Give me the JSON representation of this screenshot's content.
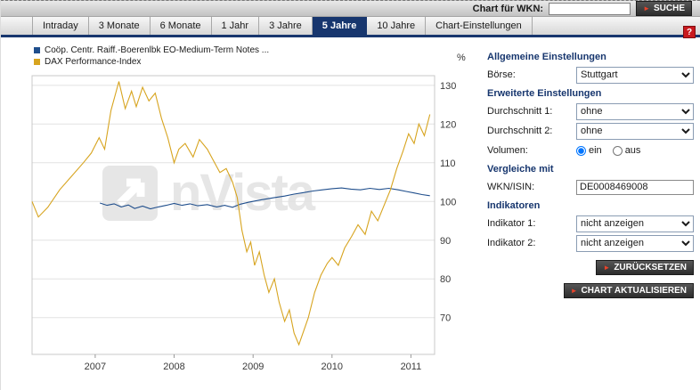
{
  "topbar": {
    "wkn_label": "Chart für WKN:",
    "wkn_value": "",
    "search_button": "SUCHE"
  },
  "icons": {
    "red_arrow": "►",
    "help": "?"
  },
  "tabs": {
    "items": [
      {
        "label": "Intraday",
        "active": false
      },
      {
        "label": "3 Monate",
        "active": false
      },
      {
        "label": "6 Monate",
        "active": false
      },
      {
        "label": "1 Jahr",
        "active": false
      },
      {
        "label": "3 Jahre",
        "active": false
      },
      {
        "label": "5 Jahre",
        "active": true
      },
      {
        "label": "10 Jahre",
        "active": false
      },
      {
        "label": "Chart-Einstellungen",
        "active": false
      }
    ]
  },
  "legend": [
    {
      "label": "Coöp. Centr. Raiff.-Boerenlbk EO-Medium-Term Notes ...",
      "color": "#1f4e8c"
    },
    {
      "label": "DAX Performance-Index",
      "color": "#d7a41f"
    }
  ],
  "watermark": {
    "text": "nVista"
  },
  "settings": {
    "general_heading": "Allgemeine Einstellungen",
    "boerse_label": "Börse:",
    "boerse_value": "Stuttgart",
    "extended_heading": "Erweiterte Einstellungen",
    "avg1_label": "Durchschnitt 1:",
    "avg1_value": "ohne",
    "avg2_label": "Durchschnitt 2:",
    "avg2_value": "ohne",
    "volume_label": "Volumen:",
    "volume_on": "ein",
    "volume_off": "aus",
    "volume_selected": "ein",
    "compare_heading": "Vergleiche mit",
    "wkn_label": "WKN/ISIN:",
    "wkn_value": "DE0008469008",
    "indicators_heading": "Indikatoren",
    "ind1_label": "Indikator 1:",
    "ind1_value": "nicht anzeigen",
    "ind2_label": "Indikator 2:",
    "ind2_value": "nicht anzeigen",
    "reset_button": "ZURÜCKSETZEN",
    "update_button": "CHART AKTUALISIEREN"
  },
  "chart_data": {
    "type": "line",
    "title": "",
    "xlabel": "",
    "ylabel": "%",
    "y_ticks": [
      70,
      80,
      90,
      100,
      110,
      120,
      130
    ],
    "x_ticks": [
      2007,
      2008,
      2009,
      2010,
      2011
    ],
    "x_range": [
      2006.2,
      2011.3
    ],
    "y_range": [
      60.5,
      132.5
    ],
    "grid": "horizontal",
    "legend_position": "top-left",
    "series": [
      {
        "name": "Coöp. Centr. Raiff.-Boerenlbk EO-Medium-Term Notes",
        "color": "#1f4e8c",
        "x": [
          2007.06,
          2007.15,
          2007.24,
          2007.33,
          2007.42,
          2007.5,
          2007.6,
          2007.7,
          2007.8,
          2007.9,
          2008.0,
          2008.1,
          2008.2,
          2008.3,
          2008.42,
          2008.54,
          2008.64,
          2008.74,
          2008.84,
          2008.94,
          2009.04,
          2009.15,
          2009.27,
          2009.4,
          2009.52,
          2009.64,
          2009.76,
          2009.88,
          2010.0,
          2010.12,
          2010.24,
          2010.36,
          2010.48,
          2010.6,
          2010.72,
          2010.84,
          2010.94,
          2011.04,
          2011.14,
          2011.24
        ],
        "y": [
          99.6,
          99.0,
          99.4,
          98.6,
          99.1,
          98.2,
          98.8,
          98.1,
          98.6,
          99.0,
          99.5,
          99.0,
          99.4,
          98.9,
          99.2,
          98.6,
          99.0,
          98.5,
          99.3,
          99.8,
          100.2,
          100.6,
          101.0,
          101.4,
          101.9,
          102.3,
          102.7,
          103.0,
          103.3,
          103.5,
          103.2,
          103.0,
          103.4,
          103.1,
          103.4,
          103.0,
          102.6,
          102.2,
          101.8,
          101.5
        ]
      },
      {
        "name": "DAX Performance-Index",
        "color": "#d7a41f",
        "x": [
          2006.2,
          2006.28,
          2006.4,
          2006.55,
          2006.7,
          2006.85,
          2006.95,
          2007.05,
          2007.12,
          2007.2,
          2007.3,
          2007.38,
          2007.46,
          2007.52,
          2007.6,
          2007.68,
          2007.76,
          2007.84,
          2007.92,
          2008.0,
          2008.06,
          2008.14,
          2008.24,
          2008.32,
          2008.42,
          2008.5,
          2008.58,
          2008.66,
          2008.74,
          2008.8,
          2008.86,
          2008.92,
          2008.97,
          2009.02,
          2009.08,
          2009.14,
          2009.2,
          2009.27,
          2009.33,
          2009.4,
          2009.46,
          2009.52,
          2009.58,
          2009.64,
          2009.7,
          2009.78,
          2009.86,
          2009.94,
          2010.0,
          2010.08,
          2010.16,
          2010.25,
          2010.33,
          2010.42,
          2010.5,
          2010.58,
          2010.66,
          2010.74,
          2010.82,
          2010.9,
          2010.97,
          2011.04,
          2011.1,
          2011.17,
          2011.24
        ],
        "y": [
          100,
          96,
          98.5,
          103,
          106.5,
          110,
          112.5,
          116.5,
          113.5,
          123.5,
          131,
          124,
          128.5,
          124.5,
          129.5,
          126,
          128,
          121.5,
          116.5,
          110,
          113.5,
          115,
          111.5,
          116,
          113.5,
          110.5,
          107.5,
          108.5,
          105,
          101,
          92.5,
          87,
          89.5,
          83.5,
          87,
          81,
          76.5,
          80,
          74,
          69,
          72,
          66,
          63,
          66.5,
          70,
          76.5,
          81,
          84,
          85.5,
          83.5,
          88,
          91,
          94,
          91.5,
          97.5,
          95,
          99,
          103,
          108.5,
          113,
          117.5,
          115,
          120,
          117,
          122.5
        ]
      }
    ]
  }
}
